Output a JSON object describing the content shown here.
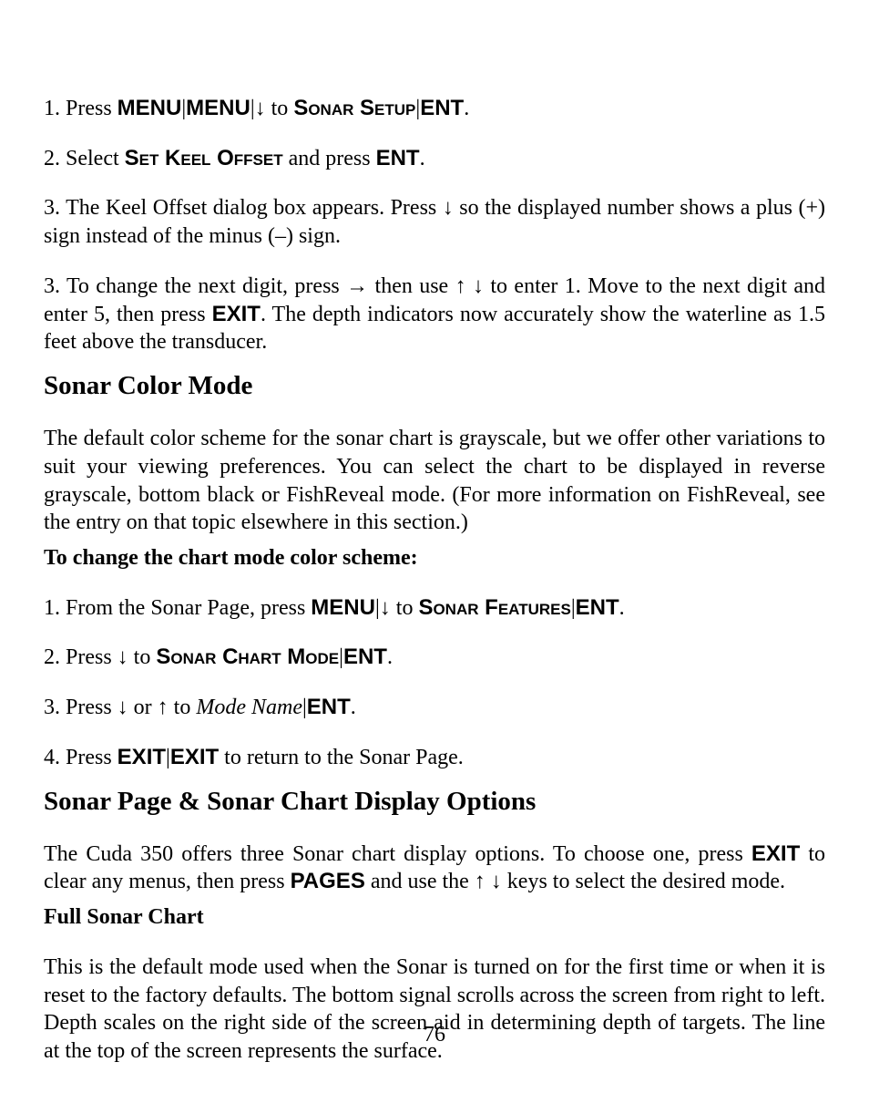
{
  "step1": {
    "prefix": "1. Press ",
    "menu1": "MENU",
    "sep1": "|",
    "menu2": "MENU",
    "sep2": "|",
    "arrow": "↓",
    "to": " to ",
    "sonarsetup": "Sonar Setup",
    "sep3": "|",
    "ent": "ENT",
    "end": "."
  },
  "step2": {
    "prefix": "2. Select ",
    "setkeel": "Set Keel Offset",
    "mid": " and press ",
    "ent": "ENT",
    "end": "."
  },
  "step3a": {
    "p1": "3. The Keel Offset dialog box appears. Press ",
    "arrow": "↓",
    "p2": " so the displayed number shows a plus (+) sign instead of the minus (–) sign."
  },
  "step3b": {
    "p1": "3. To change the next digit, press ",
    "arrow_right": "→",
    "p2": " then use ",
    "arrow_up": "↑",
    "space": " ",
    "arrow_down": "↓",
    "p3": " to enter 1. Move to the next digit and enter 5, then press ",
    "exit": "EXIT",
    "p4": ". The depth indicators now accurately show the waterline as 1.5 feet above the transducer."
  },
  "h_color": "Sonar Color Mode",
  "color_desc": "The default color scheme for the sonar chart is grayscale, but we offer other variations to suit your viewing preferences. You can select the chart to be displayed in reverse grayscale, bottom black or FishReveal mode. (For more information on FishReveal, see the entry on that topic elsewhere in this section.)",
  "h_change": "To change the chart mode color scheme:",
  "cstep1": {
    "p1": "1. From the Sonar Page, press ",
    "menu": "MENU",
    "sep": "|",
    "arrow": "↓",
    "to": " to ",
    "sonarfeat": "Sonar Features",
    "sep2": "|",
    "ent": "ENT",
    "end": "."
  },
  "cstep2": {
    "p1": "2. Press ",
    "arrow": "↓",
    "to": " to ",
    "chartmode": "Sonar Chart Mode",
    "sep": "|",
    "ent": "ENT",
    "end": "."
  },
  "cstep3": {
    "p1": "3. Press ",
    "down": "↓",
    "or": " or ",
    "up": "↑",
    "to": " to ",
    "mode": "Mode Name",
    "sep": "|",
    "ent": "ENT",
    "end": "."
  },
  "cstep4": {
    "p1": "4. Press ",
    "exit1": "EXIT",
    "sep": "|",
    "exit2": "EXIT",
    "p2": " to return to the Sonar Page."
  },
  "h_disp": "Sonar Page & Sonar Chart Display Options",
  "disp_desc": {
    "p1": "The Cuda 350 offers three Sonar chart display options. To choose one, press ",
    "exit": "EXIT",
    "p2": " to clear any menus, then press ",
    "pages": "PAGES",
    "p3": " and use the ",
    "up": "↑",
    "sp": " ",
    "down": "↓",
    "p4": " keys to select the desired mode."
  },
  "h_full": "Full Sonar Chart",
  "full_desc": "This is the default mode used when the Sonar is turned on for the first time or when it is reset to the factory defaults. The bottom signal scrolls across the screen from right to left. Depth scales on the right side of the screen aid in determining depth of targets. The line at the top of the screen represents the surface.",
  "pagenum": "76"
}
